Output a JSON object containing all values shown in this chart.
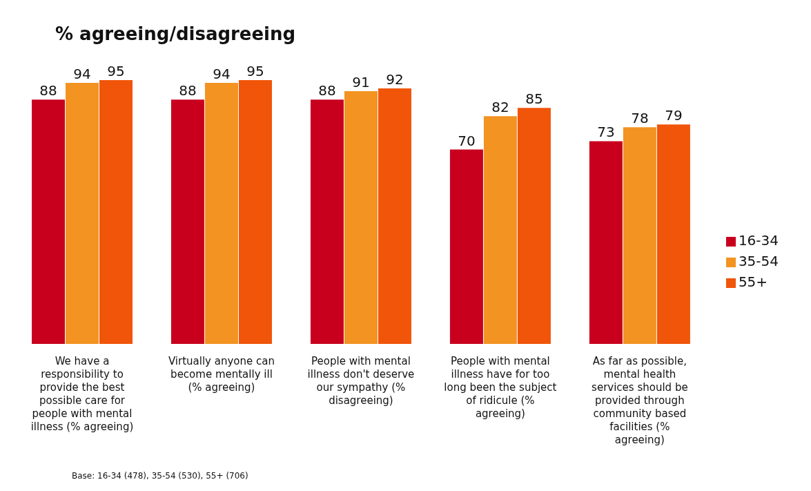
{
  "chart_data": {
    "type": "bar",
    "title": "% agreeing/disagreeing",
    "categories": [
      "We have a responsibility to provide the best possible care for people with mental illness (% agreeing)",
      "Virtually anyone can become mentally ill (% agreeing)",
      "People with mental illness don't deserve our sympathy (% disagreeing)",
      "People with mental illness have for too long been the subject of ridicule (% agreeing)",
      "As far as possible, mental health services should be provided through community based facilities (% agreeing)"
    ],
    "series": [
      {
        "name": "16-34",
        "color": "#c8001e",
        "values": [
          88,
          88,
          88,
          70,
          73
        ]
      },
      {
        "name": "35-54",
        "color": "#f39322",
        "values": [
          94,
          94,
          91,
          82,
          78
        ]
      },
      {
        "name": "55+",
        "color": "#f0550a",
        "values": [
          95,
          95,
          92,
          85,
          79
        ]
      }
    ],
    "data_labels": true,
    "legend": "right",
    "grid": false,
    "tick_labels": "x",
    "annotations": [
      "Base: 16-34 (478), 35-54 (530), 55+ (706)"
    ]
  }
}
